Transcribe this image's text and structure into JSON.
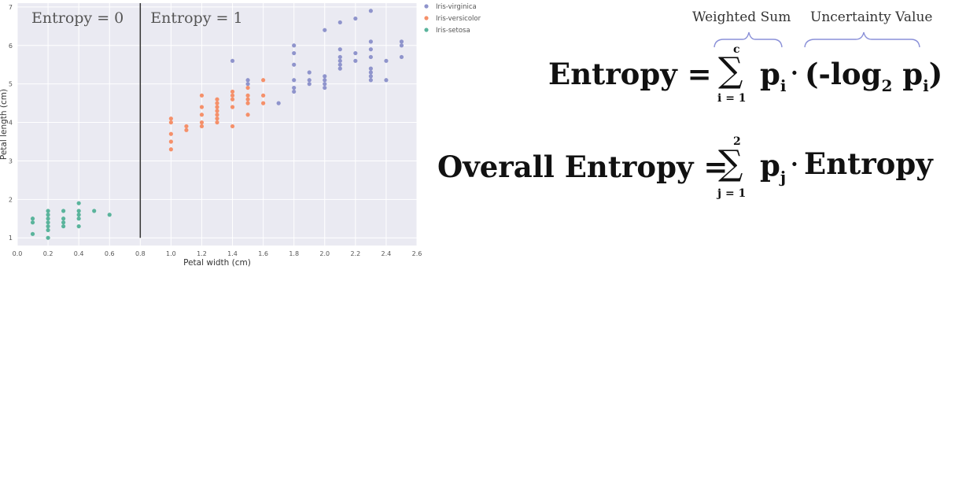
{
  "chart_data": {
    "type": "scatter",
    "xlabel": "Petal width (cm)",
    "ylabel": "Petal length (cm)",
    "xlim": [
      0.0,
      2.6
    ],
    "ylim": [
      0.8,
      7.1
    ],
    "x_ticks": [
      "0.0",
      "0.2",
      "0.4",
      "0.6",
      "0.8",
      "1.0",
      "1.2",
      "1.4",
      "1.6",
      "1.8",
      "2.0",
      "2.2",
      "2.4",
      "2.6"
    ],
    "y_ticks": [
      "1",
      "2",
      "3",
      "4",
      "5",
      "6",
      "7"
    ],
    "grid": true,
    "legend_position": "outside-top-right",
    "split_line_x": 0.8,
    "region_labels": [
      {
        "text": "Entropy = 0",
        "side": "left"
      },
      {
        "text": "Entropy = 1",
        "side": "right"
      }
    ],
    "series": [
      {
        "name": "Iris-virginica",
        "color": "#8f94cc",
        "points": [
          [
            1.4,
            5.6
          ],
          [
            1.5,
            5.0
          ],
          [
            1.5,
            5.1
          ],
          [
            1.7,
            4.5
          ],
          [
            1.8,
            4.8
          ],
          [
            1.8,
            4.9
          ],
          [
            1.8,
            5.1
          ],
          [
            1.8,
            5.5
          ],
          [
            1.8,
            5.8
          ],
          [
            1.8,
            6.0
          ],
          [
            1.9,
            5.0
          ],
          [
            1.9,
            5.1
          ],
          [
            1.9,
            5.3
          ],
          [
            2.0,
            4.9
          ],
          [
            2.0,
            5.0
          ],
          [
            2.0,
            5.1
          ],
          [
            2.0,
            5.2
          ],
          [
            2.0,
            6.4
          ],
          [
            2.1,
            5.4
          ],
          [
            2.1,
            5.5
          ],
          [
            2.1,
            5.6
          ],
          [
            2.1,
            5.7
          ],
          [
            2.1,
            5.9
          ],
          [
            2.1,
            6.6
          ],
          [
            2.2,
            5.6
          ],
          [
            2.2,
            5.8
          ],
          [
            2.2,
            6.7
          ],
          [
            2.3,
            5.1
          ],
          [
            2.3,
            5.2
          ],
          [
            2.3,
            5.3
          ],
          [
            2.3,
            5.4
          ],
          [
            2.3,
            5.7
          ],
          [
            2.3,
            5.9
          ],
          [
            2.3,
            6.1
          ],
          [
            2.3,
            6.9
          ],
          [
            2.4,
            5.1
          ],
          [
            2.4,
            5.6
          ],
          [
            2.5,
            5.7
          ],
          [
            2.5,
            6.0
          ],
          [
            2.5,
            6.1
          ]
        ]
      },
      {
        "name": "Iris-versicolor",
        "color": "#f5906a",
        "points": [
          [
            1.0,
            3.3
          ],
          [
            1.0,
            3.5
          ],
          [
            1.0,
            3.7
          ],
          [
            1.0,
            4.0
          ],
          [
            1.0,
            4.1
          ],
          [
            1.1,
            3.8
          ],
          [
            1.1,
            3.9
          ],
          [
            1.2,
            3.9
          ],
          [
            1.2,
            4.0
          ],
          [
            1.2,
            4.2
          ],
          [
            1.2,
            4.4
          ],
          [
            1.2,
            4.7
          ],
          [
            1.3,
            4.0
          ],
          [
            1.3,
            4.1
          ],
          [
            1.3,
            4.2
          ],
          [
            1.3,
            4.3
          ],
          [
            1.3,
            4.4
          ],
          [
            1.3,
            4.5
          ],
          [
            1.3,
            4.6
          ],
          [
            1.4,
            3.9
          ],
          [
            1.4,
            4.4
          ],
          [
            1.4,
            4.6
          ],
          [
            1.4,
            4.7
          ],
          [
            1.4,
            4.8
          ],
          [
            1.5,
            4.2
          ],
          [
            1.5,
            4.5
          ],
          [
            1.5,
            4.6
          ],
          [
            1.5,
            4.7
          ],
          [
            1.5,
            4.9
          ],
          [
            1.6,
            4.5
          ],
          [
            1.6,
            4.7
          ],
          [
            1.6,
            5.1
          ]
        ]
      },
      {
        "name": "Iris-setosa",
        "color": "#5ab49c",
        "points": [
          [
            0.1,
            1.1
          ],
          [
            0.1,
            1.4
          ],
          [
            0.1,
            1.5
          ],
          [
            0.2,
            1.0
          ],
          [
            0.2,
            1.2
          ],
          [
            0.2,
            1.3
          ],
          [
            0.2,
            1.4
          ],
          [
            0.2,
            1.5
          ],
          [
            0.2,
            1.6
          ],
          [
            0.2,
            1.7
          ],
          [
            0.3,
            1.3
          ],
          [
            0.3,
            1.4
          ],
          [
            0.3,
            1.5
          ],
          [
            0.3,
            1.7
          ],
          [
            0.4,
            1.3
          ],
          [
            0.4,
            1.5
          ],
          [
            0.4,
            1.6
          ],
          [
            0.4,
            1.7
          ],
          [
            0.4,
            1.9
          ],
          [
            0.5,
            1.7
          ],
          [
            0.6,
            1.6
          ]
        ]
      }
    ]
  },
  "formulas": {
    "annotation_left": "Weighted Sum",
    "annotation_right": "Uncertainty Value",
    "entropy_lhs": "Entropy =",
    "sum1_upper": "c",
    "sum1_lower": "i = 1",
    "sum1_var": "p",
    "sum1_sub": "i",
    "term_open": "(-log",
    "term_base": "2",
    "term_var": "p",
    "term_sub": "i",
    "term_close": ")",
    "overall_lhs": "Overall Entropy =",
    "sum2_upper": "2",
    "sum2_lower": "j = 1",
    "sum2_var": "p",
    "sum2_sub": "j",
    "sum2_rhs": "Entropy"
  }
}
